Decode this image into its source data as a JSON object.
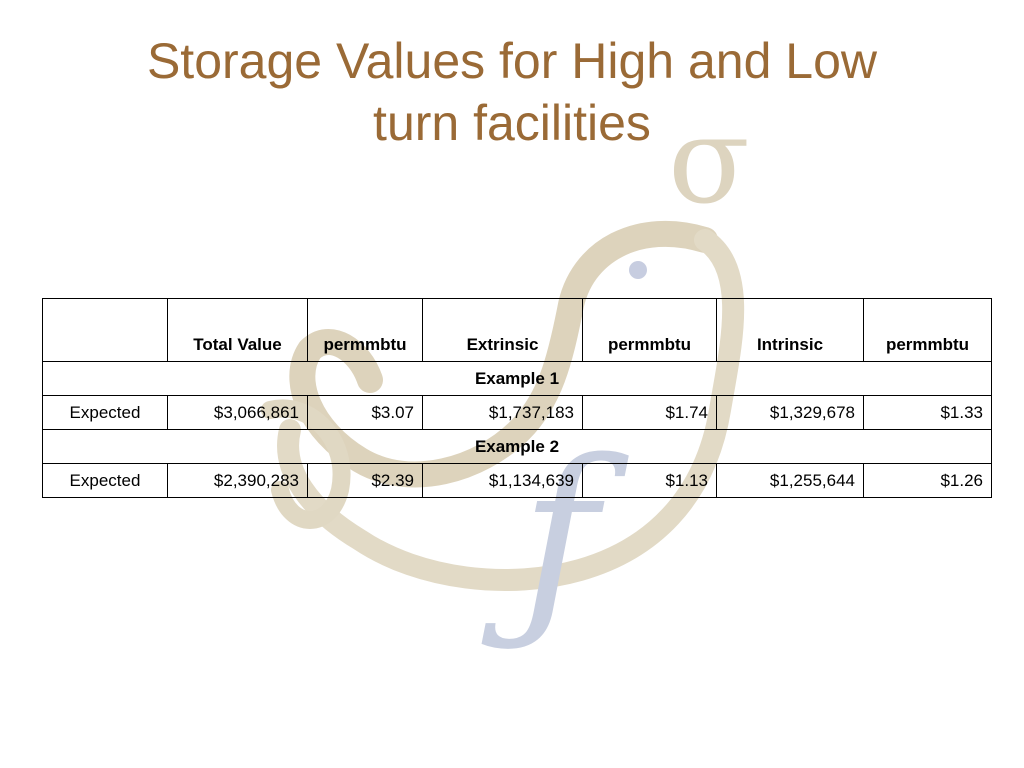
{
  "slide": {
    "title_line1": "Storage Values for High and Low",
    "title_line2": "turn facilities"
  },
  "table": {
    "headers": [
      "",
      "Total Value",
      "permmbtu",
      "Extrinsic",
      "permmbtu",
      "Intrinsic",
      "permmbtu"
    ],
    "groups": [
      {
        "label": "Example 1",
        "row": [
          "Expected",
          "$3,066,861",
          "$3.07",
          "$1,737,183",
          "$1.74",
          "$1,329,678",
          "$1.33"
        ]
      },
      {
        "label": "Example 2",
        "row": [
          "Expected",
          "$2,390,283",
          "$2.39",
          "$1,134,639",
          "$1.13",
          "$1,255,644",
          "$1.26"
        ]
      }
    ]
  },
  "colors": {
    "title": "#9a6a36",
    "watermark_tan": "#d9cdb3",
    "watermark_blue": "#c4ccdd"
  },
  "icons": {
    "background": "sigma-bird-f-watermark-icon"
  }
}
